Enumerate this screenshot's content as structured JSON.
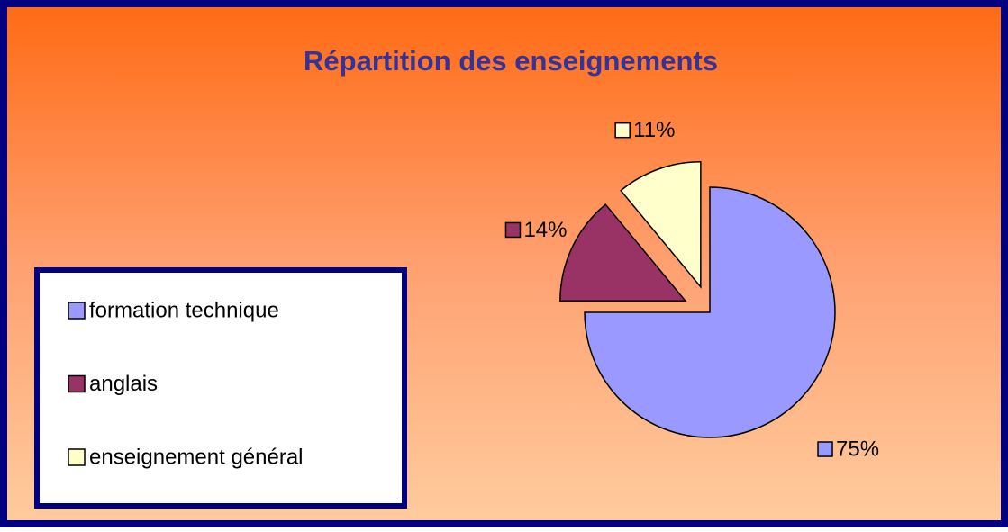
{
  "chart_data": {
    "type": "pie",
    "title": "Répartition des enseignements",
    "categories": [
      "formation technique",
      "anglais",
      "enseignement général"
    ],
    "values": [
      75,
      14,
      11
    ],
    "value_labels": [
      "75%",
      "14%",
      "11%"
    ],
    "colors": [
      "#9999ff",
      "#993366",
      "#ffffcc"
    ],
    "legend": "left"
  }
}
